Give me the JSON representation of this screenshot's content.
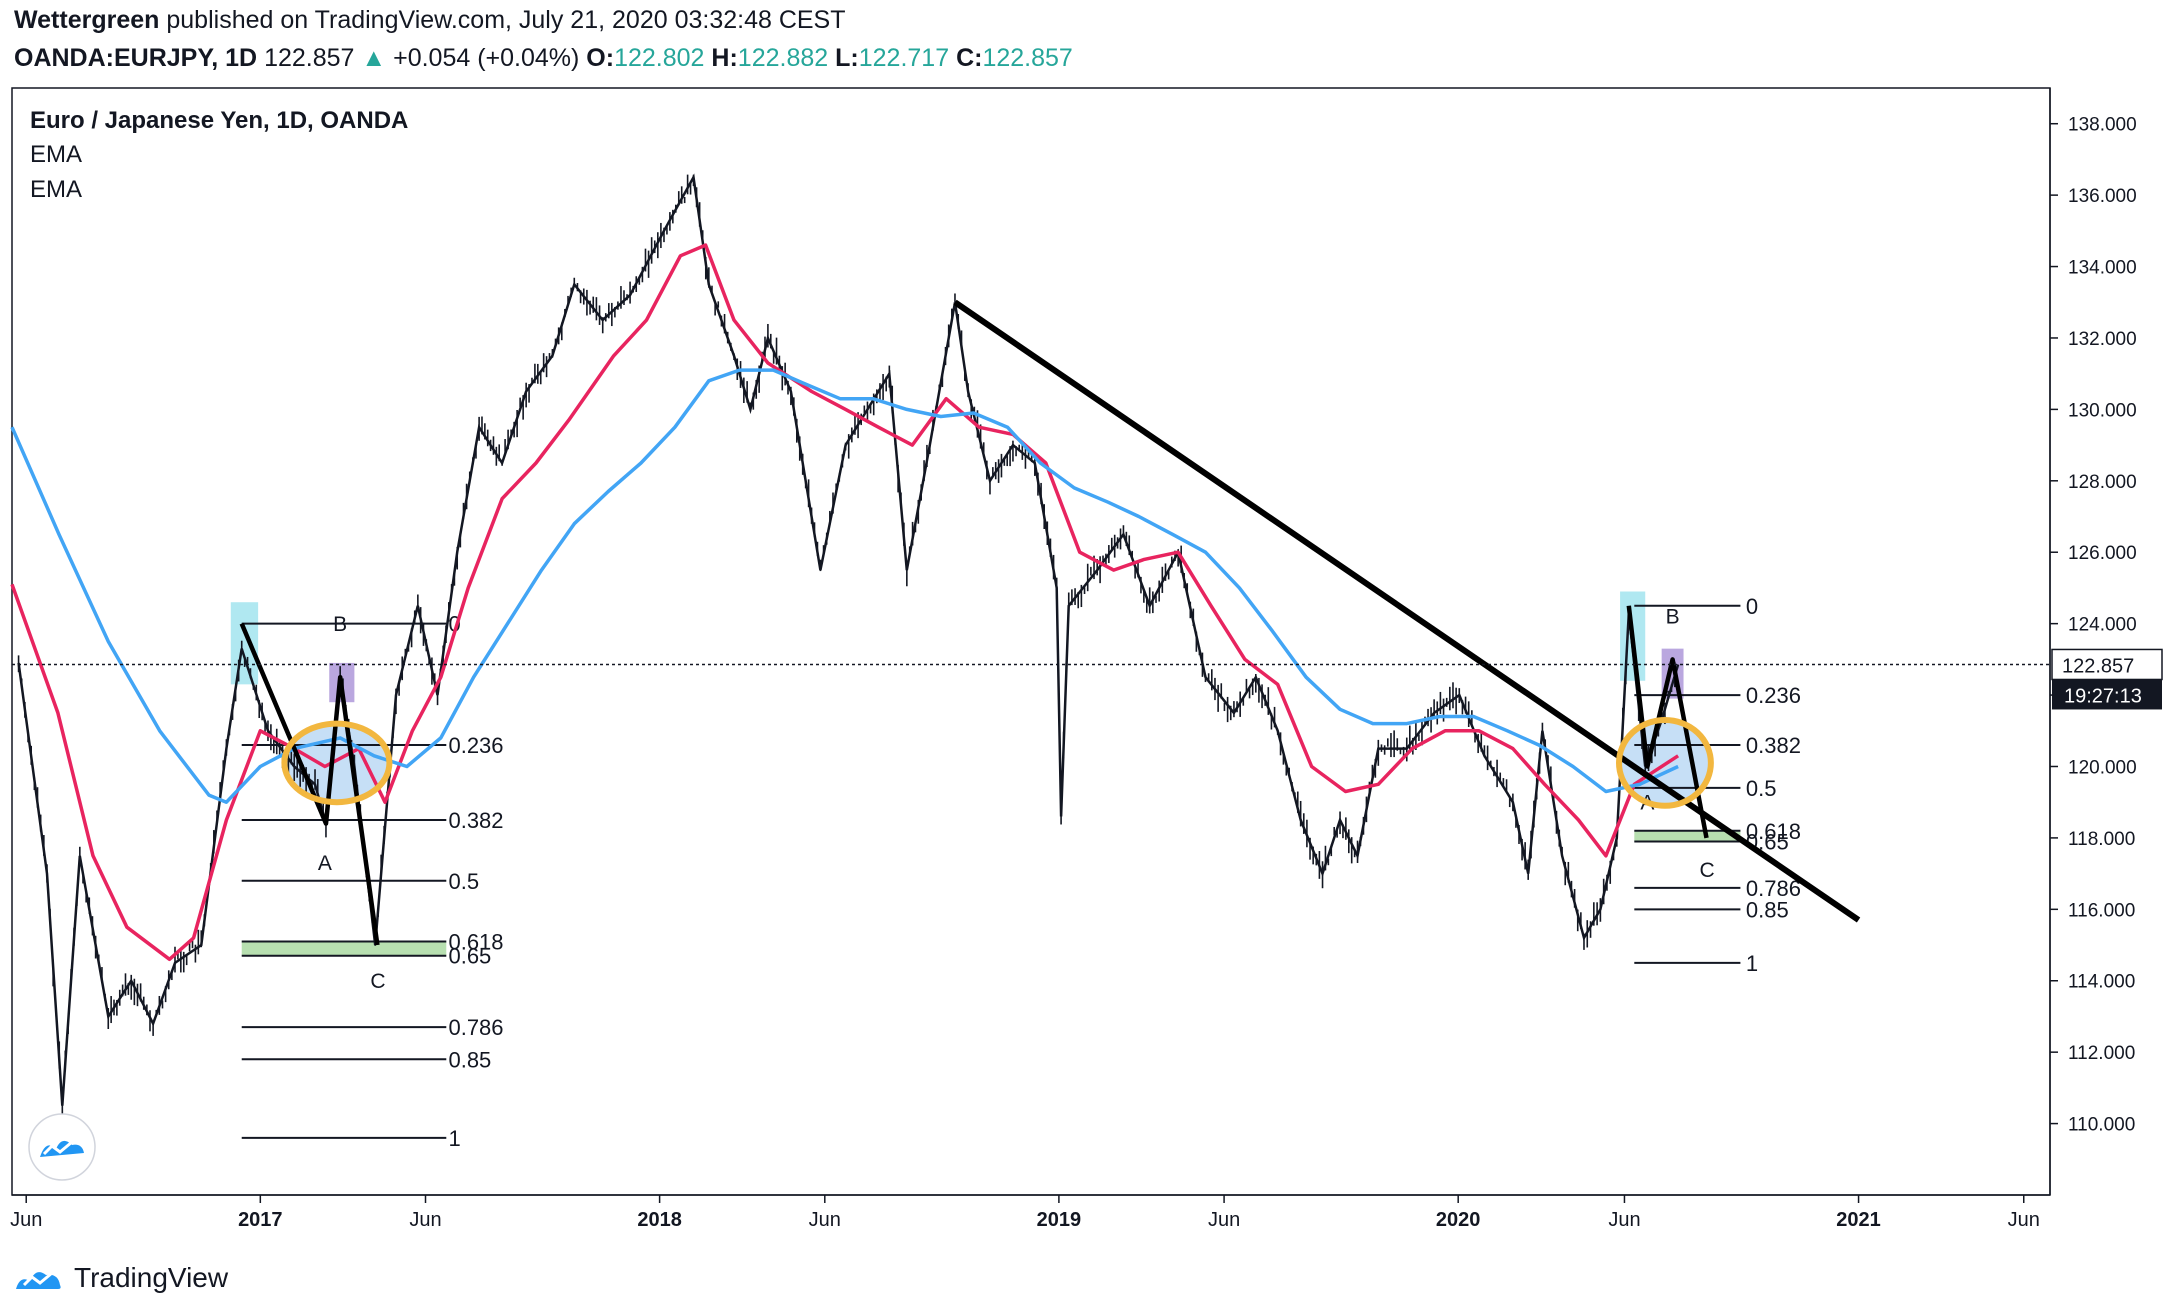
{
  "header": {
    "publisher": "Wettergreen",
    "published_text": " published on TradingView.com, July 21, 2020 03:32:48 CEST",
    "symbol": "OANDA:EURJPY, 1D",
    "last": "122.857",
    "up_arrow": "▲",
    "change": "+0.054 (+0.04%)",
    "o_label": "O:",
    "o_value": "122.802",
    "h_label": "H:",
    "h_value": "122.882",
    "l_label": "L:",
    "l_value": "122.717",
    "c_label": "C:",
    "c_value": "122.857"
  },
  "footer": {
    "brand": "TradingView"
  },
  "colors": {
    "ema_fast": "#e8245f",
    "ema_slow": "#42a5f5",
    "candle": "#131722",
    "fib_zone": "#b7dfb0",
    "highlight_cyan": "#a7e6ef",
    "highlight_purple": "#b39ddb",
    "ellipse_fill": "#bcd9f5",
    "ellipse_stroke": "#f2b73f",
    "up": "#26a69a"
  },
  "chart_data": {
    "type": "line",
    "title": "Euro / Japanese Yen, 1D, OANDA",
    "legend": [
      "EMA",
      "EMA"
    ],
    "legend_placement": "top-left",
    "ylim": [
      108.0,
      139.0
    ],
    "y_ticks": [
      "110.000",
      "112.000",
      "114.000",
      "116.000",
      "118.000",
      "120.000",
      "122.000",
      "124.000",
      "126.000",
      "128.000",
      "130.000",
      "132.000",
      "134.000",
      "136.000",
      "138.000"
    ],
    "x_ticks": [
      "Jun",
      "2017",
      "Jun",
      "2018",
      "Jun",
      "2019",
      "Jun",
      "2020",
      "Jun",
      "2021",
      "Jun"
    ],
    "x_tick_dates": [
      "2016-06",
      "2017-01",
      "2017-06",
      "2018-01",
      "2018-06",
      "2019-01",
      "2019-06",
      "2020-01",
      "2020-06",
      "2021-01",
      "2021-06"
    ],
    "x_axis_range": [
      "2016-05-19",
      "2021-06-25"
    ],
    "current_price": {
      "value": 122.857,
      "label": "122.857",
      "countdown": "19:27:13"
    },
    "price_series": {
      "name": "",
      "points": [
        [
          "2016-05-25",
          122.9
        ],
        [
          "2016-06-20",
          117.0
        ],
        [
          "2016-07-04",
          110.5
        ],
        [
          "2016-07-20",
          117.5
        ],
        [
          "2016-08-15",
          113.0
        ],
        [
          "2016-09-05",
          114.0
        ],
        [
          "2016-09-25",
          112.8
        ],
        [
          "2016-10-15",
          114.5
        ],
        [
          "2016-11-08",
          115.0
        ],
        [
          "2016-12-01",
          120.5
        ],
        [
          "2016-12-15",
          123.3
        ],
        [
          "2017-01-08",
          121.0
        ],
        [
          "2017-02-01",
          120.0
        ],
        [
          "2017-02-20",
          119.5
        ],
        [
          "2017-03-02",
          118.4
        ],
        [
          "2017-03-15",
          122.5
        ],
        [
          "2017-03-28",
          120.0
        ],
        [
          "2017-04-16",
          115.0
        ],
        [
          "2017-05-05",
          122.0
        ],
        [
          "2017-05-25",
          124.5
        ],
        [
          "2017-06-12",
          122.0
        ],
        [
          "2017-06-30",
          126.0
        ],
        [
          "2017-07-20",
          129.5
        ],
        [
          "2017-08-10",
          128.5
        ],
        [
          "2017-09-01",
          130.5
        ],
        [
          "2017-09-25",
          131.5
        ],
        [
          "2017-10-15",
          133.5
        ],
        [
          "2017-11-10",
          132.5
        ],
        [
          "2017-12-05",
          133.2
        ],
        [
          "2018-01-05",
          135.0
        ],
        [
          "2018-02-01",
          136.5
        ],
        [
          "2018-02-15",
          133.5
        ],
        [
          "2018-03-10",
          131.5
        ],
        [
          "2018-03-25",
          130.0
        ],
        [
          "2018-04-10",
          132.0
        ],
        [
          "2018-05-01",
          130.5
        ],
        [
          "2018-05-28",
          125.5
        ],
        [
          "2018-06-20",
          129.0
        ],
        [
          "2018-07-10",
          130.0
        ],
        [
          "2018-07-30",
          131.0
        ],
        [
          "2018-08-15",
          125.5
        ],
        [
          "2018-09-05",
          129.0
        ],
        [
          "2018-09-28",
          133.0
        ],
        [
          "2018-10-10",
          130.5
        ],
        [
          "2018-10-30",
          128.0
        ],
        [
          "2018-11-20",
          129.0
        ],
        [
          "2018-12-10",
          128.5
        ],
        [
          "2018-12-30",
          125.0
        ],
        [
          "2019-01-03",
          118.6
        ],
        [
          "2019-01-10",
          124.5
        ],
        [
          "2019-02-05",
          125.5
        ],
        [
          "2019-03-01",
          126.5
        ],
        [
          "2019-03-25",
          124.5
        ],
        [
          "2019-04-20",
          126.0
        ],
        [
          "2019-05-15",
          122.5
        ],
        [
          "2019-06-10",
          121.5
        ],
        [
          "2019-06-30",
          122.5
        ],
        [
          "2019-07-20",
          121.0
        ],
        [
          "2019-08-10",
          118.5
        ],
        [
          "2019-08-30",
          117.0
        ],
        [
          "2019-09-15",
          118.5
        ],
        [
          "2019-10-01",
          117.5
        ],
        [
          "2019-10-20",
          120.5
        ],
        [
          "2019-11-15",
          120.5
        ],
        [
          "2019-12-10",
          121.5
        ],
        [
          "2020-01-02",
          122.0
        ],
        [
          "2020-01-25",
          120.3
        ],
        [
          "2020-02-20",
          119.0
        ],
        [
          "2020-03-05",
          117.0
        ],
        [
          "2020-03-18",
          121.0
        ],
        [
          "2020-04-05",
          117.5
        ],
        [
          "2020-04-25",
          115.2
        ],
        [
          "2020-05-10",
          116.0
        ],
        [
          "2020-05-25",
          118.0
        ],
        [
          "2020-06-05",
          124.3
        ],
        [
          "2020-06-20",
          120.0
        ],
        [
          "2020-07-05",
          121.3
        ],
        [
          "2020-07-20",
          122.857
        ]
      ]
    },
    "series": [
      {
        "name": "EMA",
        "color": "#e8245f",
        "points": [
          [
            "2016-05-19",
            125.1
          ],
          [
            "2016-06-30",
            121.5
          ],
          [
            "2016-08-01",
            117.5
          ],
          [
            "2016-09-01",
            115.5
          ],
          [
            "2016-10-10",
            114.6
          ],
          [
            "2016-11-01",
            115.2
          ],
          [
            "2016-12-01",
            118.5
          ],
          [
            "2017-01-01",
            121.0
          ],
          [
            "2017-02-01",
            120.5
          ],
          [
            "2017-03-01",
            120.0
          ],
          [
            "2017-04-01",
            120.5
          ],
          [
            "2017-04-25",
            119.0
          ],
          [
            "2017-05-20",
            121.0
          ],
          [
            "2017-06-15",
            122.5
          ],
          [
            "2017-07-10",
            125.0
          ],
          [
            "2017-08-10",
            127.5
          ],
          [
            "2017-09-10",
            128.5
          ],
          [
            "2017-10-10",
            129.7
          ],
          [
            "2017-11-20",
            131.5
          ],
          [
            "2017-12-20",
            132.5
          ],
          [
            "2018-01-20",
            134.3
          ],
          [
            "2018-02-12",
            134.6
          ],
          [
            "2018-03-10",
            132.5
          ],
          [
            "2018-04-10",
            131.3
          ],
          [
            "2018-05-20",
            130.5
          ],
          [
            "2018-06-20",
            130.0
          ],
          [
            "2018-07-20",
            129.5
          ],
          [
            "2018-08-20",
            129.0
          ],
          [
            "2018-09-20",
            130.3
          ],
          [
            "2018-10-20",
            129.5
          ],
          [
            "2018-11-20",
            129.3
          ],
          [
            "2018-12-20",
            128.5
          ],
          [
            "2019-01-20",
            126.0
          ],
          [
            "2019-02-20",
            125.5
          ],
          [
            "2019-03-20",
            125.8
          ],
          [
            "2019-04-20",
            126.0
          ],
          [
            "2019-05-20",
            124.5
          ],
          [
            "2019-06-20",
            123.0
          ],
          [
            "2019-07-20",
            122.3
          ],
          [
            "2019-08-20",
            120.0
          ],
          [
            "2019-09-20",
            119.3
          ],
          [
            "2019-10-20",
            119.5
          ],
          [
            "2019-11-20",
            120.5
          ],
          [
            "2019-12-20",
            121.0
          ],
          [
            "2020-01-20",
            121.0
          ],
          [
            "2020-02-20",
            120.5
          ],
          [
            "2020-03-20",
            119.5
          ],
          [
            "2020-04-20",
            118.5
          ],
          [
            "2020-05-15",
            117.5
          ],
          [
            "2020-06-10",
            119.5
          ],
          [
            "2020-07-20",
            120.3
          ]
        ]
      },
      {
        "name": "EMA",
        "color": "#42a5f5",
        "points": [
          [
            "2016-05-19",
            129.5
          ],
          [
            "2016-07-01",
            126.5
          ],
          [
            "2016-08-15",
            123.5
          ],
          [
            "2016-10-01",
            121.0
          ],
          [
            "2016-11-15",
            119.2
          ],
          [
            "2016-12-01",
            119.0
          ],
          [
            "2017-01-01",
            120.0
          ],
          [
            "2017-02-01",
            120.5
          ],
          [
            "2017-03-15",
            120.8
          ],
          [
            "2017-04-15",
            120.3
          ],
          [
            "2017-05-15",
            120.0
          ],
          [
            "2017-06-15",
            120.8
          ],
          [
            "2017-07-15",
            122.5
          ],
          [
            "2017-08-15",
            124.0
          ],
          [
            "2017-09-15",
            125.5
          ],
          [
            "2017-10-15",
            126.8
          ],
          [
            "2017-11-15",
            127.7
          ],
          [
            "2017-12-15",
            128.5
          ],
          [
            "2018-01-15",
            129.5
          ],
          [
            "2018-02-15",
            130.8
          ],
          [
            "2018-03-15",
            131.1
          ],
          [
            "2018-04-15",
            131.1
          ],
          [
            "2018-05-15",
            130.7
          ],
          [
            "2018-06-15",
            130.3
          ],
          [
            "2018-07-15",
            130.3
          ],
          [
            "2018-08-15",
            130.0
          ],
          [
            "2018-09-15",
            129.8
          ],
          [
            "2018-10-15",
            129.9
          ],
          [
            "2018-11-15",
            129.5
          ],
          [
            "2018-12-15",
            128.5
          ],
          [
            "2019-01-15",
            127.8
          ],
          [
            "2019-02-15",
            127.4
          ],
          [
            "2019-03-15",
            127.0
          ],
          [
            "2019-04-15",
            126.5
          ],
          [
            "2019-05-15",
            126.0
          ],
          [
            "2019-06-15",
            125.0
          ],
          [
            "2019-07-15",
            123.8
          ],
          [
            "2019-08-15",
            122.5
          ],
          [
            "2019-09-15",
            121.6
          ],
          [
            "2019-10-15",
            121.2
          ],
          [
            "2019-11-15",
            121.2
          ],
          [
            "2019-12-15",
            121.4
          ],
          [
            "2020-01-15",
            121.4
          ],
          [
            "2020-02-15",
            121.0
          ],
          [
            "2020-03-15",
            120.6
          ],
          [
            "2020-04-15",
            120.0
          ],
          [
            "2020-05-15",
            119.3
          ],
          [
            "2020-06-15",
            119.5
          ],
          [
            "2020-07-20",
            120.0
          ]
        ]
      }
    ],
    "fib_sets": [
      {
        "start_date": "2016-12-15",
        "end_date": "2017-06-20",
        "label_date": "2017-06-22",
        "levels": [
          {
            "label": "0",
            "price": 124.0
          },
          {
            "label": "0.236",
            "price": 120.6
          },
          {
            "label": "0.382",
            "price": 118.5
          },
          {
            "label": "0.5",
            "price": 116.8
          },
          {
            "label": "0.618",
            "price": 115.1
          },
          {
            "label": "0.65",
            "price": 114.7
          },
          {
            "label": "0.786",
            "price": 112.7
          },
          {
            "label": "0.85",
            "price": 111.8
          },
          {
            "label": "1",
            "price": 109.6
          }
        ],
        "zone": {
          "from": 115.1,
          "to": 114.7
        }
      },
      {
        "start_date": "2020-06-10",
        "end_date": "2020-09-15",
        "label_date": "2020-09-20",
        "levels": [
          {
            "label": "0",
            "price": 124.5
          },
          {
            "label": "0.236",
            "price": 122.0
          },
          {
            "label": "0.382",
            "price": 120.6
          },
          {
            "label": "0.5",
            "price": 119.4
          },
          {
            "label": "0.618",
            "price": 118.2
          },
          {
            "label": "0.65",
            "price": 117.9
          },
          {
            "label": "0.786",
            "price": 116.6
          },
          {
            "label": "0.85",
            "price": 116.0
          },
          {
            "label": "1",
            "price": 114.5
          }
        ],
        "zone": {
          "from": 118.2,
          "to": 117.9
        }
      }
    ],
    "trendline": [
      [
        "2018-09-28",
        133.0
      ],
      [
        "2021-01-01",
        115.7
      ]
    ],
    "abc_patterns": [
      {
        "points": [
          [
            "2016-12-15",
            124.0
          ],
          [
            "2017-03-02",
            118.4
          ],
          [
            "2017-03-15",
            122.5
          ],
          [
            "2017-04-18",
            115.0
          ]
        ],
        "labels": [
          {
            "text": "A",
            "date": "2017-03-01",
            "price": 117.1
          },
          {
            "text": "B",
            "date": "2017-03-15",
            "price": 123.8
          },
          {
            "text": "C",
            "date": "2017-04-18",
            "price": 113.8
          }
        ]
      },
      {
        "points": [
          [
            "2020-06-05",
            124.5
          ],
          [
            "2020-06-22",
            120.0
          ],
          [
            "2020-07-15",
            123.0
          ],
          [
            "2020-08-15",
            118.0
          ]
        ],
        "labels": [
          {
            "text": "A",
            "date": "2020-06-22",
            "price": 118.8
          },
          {
            "text": "B",
            "date": "2020-07-15",
            "price": 124.0
          },
          {
            "text": "C",
            "date": "2020-08-15",
            "price": 116.9
          }
        ]
      }
    ],
    "highlight_boxes": [
      {
        "color": "cyan",
        "date_from": "2016-12-05",
        "date_to": "2016-12-30",
        "price_from": 122.3,
        "price_to": 124.6
      },
      {
        "color": "purple",
        "date_from": "2017-03-05",
        "date_to": "2017-03-28",
        "price_from": 121.8,
        "price_to": 122.9
      },
      {
        "color": "cyan",
        "date_from": "2020-05-28",
        "date_to": "2020-06-20",
        "price_from": 122.4,
        "price_to": 124.9
      },
      {
        "color": "purple",
        "date_from": "2020-07-05",
        "date_to": "2020-07-25",
        "price_from": 121.9,
        "price_to": 123.3
      }
    ],
    "ellipses": [
      {
        "center_date": "2017-03-12",
        "center_price": 120.1,
        "half_width_days": 48,
        "half_height_price": 1.1
      },
      {
        "center_date": "2020-07-08",
        "center_price": 120.1,
        "half_width_days": 42,
        "half_height_price": 1.2
      }
    ]
  }
}
